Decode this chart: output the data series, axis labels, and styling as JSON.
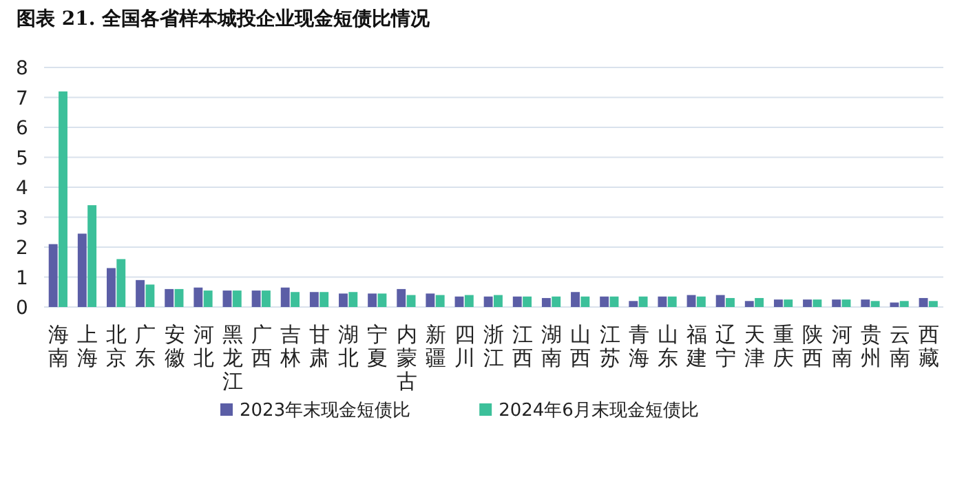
{
  "chart_data": {
    "type": "bar",
    "title": "图表 21. 全国各省样本城投企业现金短债比情况",
    "categories": [
      "海南",
      "上海",
      "北京",
      "广东",
      "安徽",
      "河北",
      "黑龙江",
      "广西",
      "吉林",
      "甘肃",
      "湖北",
      "宁夏",
      "内蒙古",
      "新疆",
      "四川",
      "浙江",
      "江西",
      "湖南",
      "山西",
      "江苏",
      "青海",
      "山东",
      "福建",
      "辽宁",
      "天津",
      "重庆",
      "陕西",
      "河南",
      "贵州",
      "云南",
      "西藏"
    ],
    "series": [
      {
        "name": "2023年末现金短债比",
        "color": "#5b5ea6",
        "values": [
          2.1,
          2.45,
          1.3,
          0.9,
          0.6,
          0.65,
          0.55,
          0.55,
          0.65,
          0.5,
          0.45,
          0.45,
          0.6,
          0.45,
          0.35,
          0.35,
          0.35,
          0.3,
          0.5,
          0.35,
          0.2,
          0.35,
          0.4,
          0.4,
          0.2,
          0.25,
          0.25,
          0.25,
          0.25,
          0.15,
          0.3
        ]
      },
      {
        "name": "2024年6月末现金短债比",
        "color": "#3cc09a",
        "values": [
          7.2,
          3.4,
          1.6,
          0.75,
          0.6,
          0.55,
          0.55,
          0.55,
          0.5,
          0.5,
          0.5,
          0.45,
          0.4,
          0.4,
          0.4,
          0.4,
          0.35,
          0.35,
          0.35,
          0.35,
          0.35,
          0.35,
          0.35,
          0.3,
          0.3,
          0.25,
          0.25,
          0.25,
          0.2,
          0.2,
          0.2
        ]
      }
    ],
    "ylim": [
      0,
      8
    ],
    "yticks": [
      0,
      1,
      2,
      3,
      4,
      5,
      6,
      7,
      8
    ],
    "grid": "y",
    "legend": "bottom"
  }
}
